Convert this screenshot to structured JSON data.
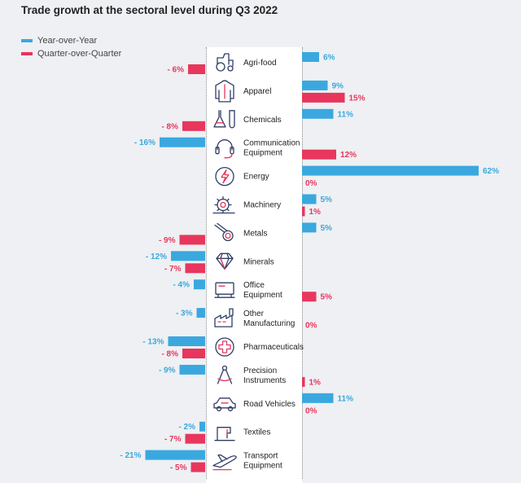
{
  "chart_data": {
    "type": "bar",
    "title": "Trade growth at the sectoral level during Q3 2022",
    "legend": [
      {
        "name": "Year-over-Year",
        "color": "#3aa8df"
      },
      {
        "name": "Quarter-over-Quarter",
        "color": "#e8365d"
      }
    ],
    "categories": [
      {
        "label": [
          "Agri-food"
        ],
        "icon": "tractor-icon"
      },
      {
        "label": [
          "Apparel"
        ],
        "icon": "jacket-icon"
      },
      {
        "label": [
          "Chemicals"
        ],
        "icon": "flask-icon"
      },
      {
        "label": [
          "Communication",
          "Equipment"
        ],
        "icon": "headset-icon"
      },
      {
        "label": [
          "Energy"
        ],
        "icon": "lightning-icon"
      },
      {
        "label": [
          "Machinery"
        ],
        "icon": "gear-icon"
      },
      {
        "label": [
          "Metals"
        ],
        "icon": "metal-coil-icon"
      },
      {
        "label": [
          "Minerals"
        ],
        "icon": "diamond-icon"
      },
      {
        "label": [
          "Office",
          "Equipment"
        ],
        "icon": "monitor-icon"
      },
      {
        "label": [
          "Other",
          "Manufacturing"
        ],
        "icon": "factory-icon"
      },
      {
        "label": [
          "Pharmaceuticals"
        ],
        "icon": "medical-cross-icon"
      },
      {
        "label": [
          "Precision",
          "Instruments"
        ],
        "icon": "compass-icon"
      },
      {
        "label": [
          "Road Vehicles"
        ],
        "icon": "car-icon"
      },
      {
        "label": [
          "Textiles"
        ],
        "icon": "sewing-machine-icon"
      },
      {
        "label": [
          "Transport",
          "Equipment"
        ],
        "icon": "airplane-icon"
      }
    ],
    "series": [
      {
        "name": "Year-over-Year",
        "values": [
          6,
          9,
          11,
          -16,
          62,
          5,
          5,
          -12,
          -4,
          -3,
          -13,
          -9,
          11,
          -2,
          -21
        ],
        "labels": [
          "6%",
          "9%",
          "11%",
          "- 16%",
          "62%",
          "5%",
          "5%",
          "- 12%",
          "- 4%",
          "- 3%",
          "- 13%",
          "- 9%",
          "11%",
          "- 2%",
          "- 21%"
        ]
      },
      {
        "name": "Quarter-over-Quarter",
        "values": [
          -6,
          15,
          -8,
          12,
          0,
          1,
          -9,
          -7,
          5,
          0,
          -8,
          1,
          0,
          -7,
          -5
        ],
        "labels": [
          "- 6%",
          "15%",
          "- 8%",
          "12%",
          "0%",
          "1%",
          "- 9%",
          "- 7%",
          "5%",
          "0%",
          "- 8%",
          "1%",
          "0%",
          "- 7%",
          "- 5%"
        ]
      }
    ],
    "xlabel": "",
    "ylabel": ""
  }
}
